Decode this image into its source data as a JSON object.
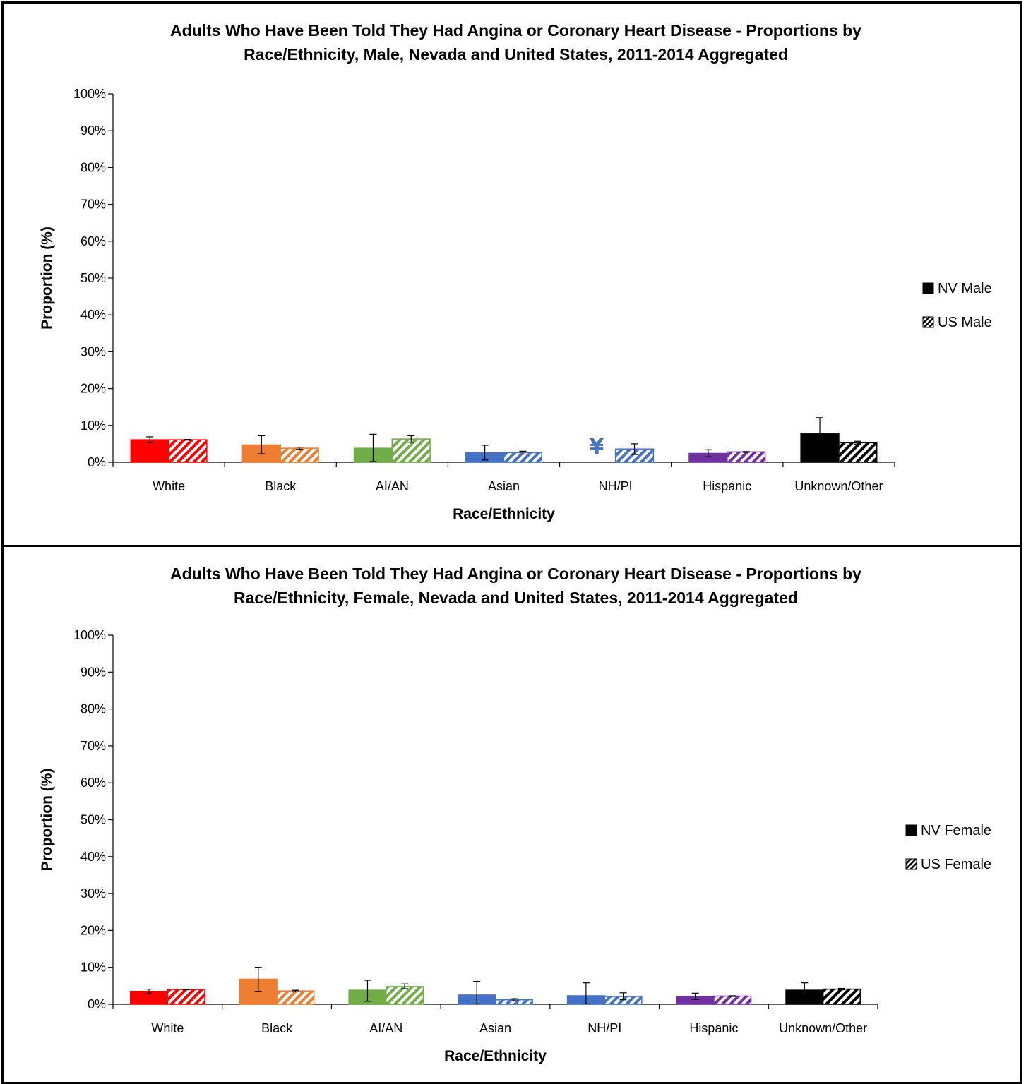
{
  "chart_data": [
    {
      "type": "bar",
      "title_lines": [
        "Adults Who Have Been Told They Had Angina or Coronary Heart Disease - Proportions by",
        "Race/Ethnicity, Male, Nevada and United States, 2011-2014 Aggregated"
      ],
      "xlabel": "Race/Ethnicity",
      "ylabel": "Proportion (%)",
      "ylim": [
        0,
        100
      ],
      "yticks": [
        "0%",
        "10%",
        "20%",
        "30%",
        "40%",
        "50%",
        "60%",
        "70%",
        "80%",
        "90%",
        "100%"
      ],
      "categories": [
        "White",
        "Black",
        "AI/AN",
        "Asian",
        "NH/PI",
        "Hispanic",
        "Unknown/Other"
      ],
      "colors": [
        "#ff0000",
        "#ed7d31",
        "#70ad47",
        "#4472c4",
        "#4472c4",
        "#7030a0",
        "#000000"
      ],
      "legend_position": "right",
      "suppressed_symbol": "¥",
      "series": [
        {
          "name": "NV Male",
          "pattern": "solid",
          "values": [
            6.1,
            4.7,
            3.8,
            2.6,
            null,
            2.4,
            7.7
          ],
          "error_low": [
            5.3,
            2.3,
            0.2,
            0.6,
            null,
            1.5,
            3.2
          ],
          "error_high": [
            6.9,
            7.2,
            7.6,
            4.6,
            null,
            3.4,
            12.1
          ],
          "suppressed": [
            false,
            false,
            false,
            false,
            true,
            false,
            false
          ]
        },
        {
          "name": "US Male",
          "pattern": "hatched",
          "values": [
            6.1,
            3.8,
            6.3,
            2.6,
            3.6,
            2.8,
            5.3
          ],
          "error_low": [
            6.0,
            3.5,
            5.4,
            2.2,
            2.1,
            2.7,
            4.9
          ],
          "error_high": [
            6.2,
            4.1,
            7.2,
            3.0,
            5.0,
            2.9,
            5.7
          ],
          "suppressed": [
            false,
            false,
            false,
            false,
            false,
            false,
            false
          ]
        }
      ]
    },
    {
      "type": "bar",
      "title_lines": [
        "Adults Who Have Been Told They Had Angina or Coronary Heart Disease - Proportions by",
        "Race/Ethnicity, Female, Nevada and United States, 2011-2014 Aggregated"
      ],
      "xlabel": "Race/Ethnicity",
      "ylabel": "Proportion (%)",
      "ylim": [
        0,
        100
      ],
      "yticks": [
        "0%",
        "10%",
        "20%",
        "30%",
        "40%",
        "50%",
        "60%",
        "70%",
        "80%",
        "90%",
        "100%"
      ],
      "categories": [
        "White",
        "Black",
        "AI/AN",
        "Asian",
        "NH/PI",
        "Hispanic",
        "Unknown/Other"
      ],
      "colors": [
        "#ff0000",
        "#ed7d31",
        "#70ad47",
        "#4472c4",
        "#4472c4",
        "#7030a0",
        "#000000"
      ],
      "legend_position": "right",
      "suppressed_symbol": "¥",
      "series": [
        {
          "name": "NV Female",
          "pattern": "solid",
          "values": [
            3.5,
            6.8,
            3.8,
            2.5,
            2.3,
            2.1,
            3.8
          ],
          "error_low": [
            2.9,
            3.5,
            0.8,
            0.1,
            0.1,
            1.3,
            1.7
          ],
          "error_high": [
            4.1,
            10.0,
            6.5,
            6.2,
            5.8,
            3.0,
            5.8
          ],
          "suppressed": [
            false,
            false,
            false,
            false,
            false,
            false,
            false
          ]
        },
        {
          "name": "US Female",
          "pattern": "hatched",
          "values": [
            4.0,
            3.6,
            4.8,
            1.2,
            2.1,
            2.2,
            4.1
          ],
          "error_low": [
            3.9,
            3.4,
            4.2,
            0.9,
            1.2,
            2.1,
            3.9
          ],
          "error_high": [
            4.1,
            3.8,
            5.5,
            1.5,
            3.1,
            2.3,
            4.3
          ],
          "suppressed": [
            false,
            false,
            false,
            false,
            false,
            false,
            false
          ]
        }
      ]
    }
  ]
}
